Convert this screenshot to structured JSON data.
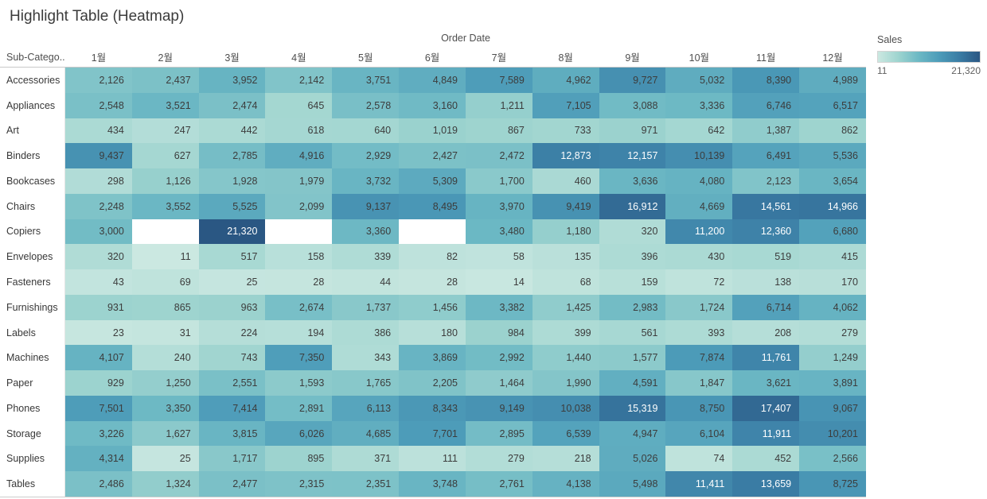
{
  "title": "Highlight Table (Heatmap)",
  "columns_header": {
    "dimension": "Order Date",
    "row_dimension": "Sub-Catego..",
    "months": [
      "1월",
      "2월",
      "3월",
      "4월",
      "5월",
      "6월",
      "7월",
      "8월",
      "9월",
      "10월",
      "11월",
      "12월"
    ]
  },
  "legend": {
    "title": "Sales",
    "min_label": "11",
    "max_label": "21,320"
  },
  "colors": {
    "scale_stops": [
      "#cbe8e1",
      "#9ed4cf",
      "#6cb8c4",
      "#4d9cb9",
      "#3a7ca4",
      "#2a5783"
    ],
    "null_cell": "#ffffff",
    "cell_text_dark": "#3c3c3c",
    "cell_text_light": "#ffffff"
  },
  "chart_data": {
    "type": "heatmap",
    "title": "Highlight Table (Heatmap)",
    "x_label": "Order Date",
    "y_label": "Sub-Catego..",
    "x": [
      "1월",
      "2월",
      "3월",
      "4월",
      "5월",
      "6월",
      "7월",
      "8월",
      "9월",
      "10월",
      "11월",
      "12월"
    ],
    "categories": [
      "Accessories",
      "Appliances",
      "Art",
      "Binders",
      "Bookcases",
      "Chairs",
      "Copiers",
      "Envelopes",
      "Fasteners",
      "Furnishings",
      "Labels",
      "Machines",
      "Paper",
      "Phones",
      "Storage",
      "Supplies",
      "Tables"
    ],
    "legend_title": "Sales",
    "value_range": [
      11,
      21320
    ],
    "rows": [
      {
        "label": "Accessories",
        "values": [
          2126,
          2437,
          3952,
          2142,
          3751,
          4849,
          7589,
          4962,
          9727,
          5032,
          8390,
          4989
        ]
      },
      {
        "label": "Appliances",
        "values": [
          2548,
          3521,
          2474,
          645,
          2578,
          3160,
          1211,
          7105,
          3088,
          3336,
          6746,
          6517
        ]
      },
      {
        "label": "Art",
        "values": [
          434,
          247,
          442,
          618,
          640,
          1019,
          867,
          733,
          971,
          642,
          1387,
          862
        ]
      },
      {
        "label": "Binders",
        "values": [
          9437,
          627,
          2785,
          4916,
          2929,
          2427,
          2472,
          12873,
          12157,
          10139,
          6491,
          5536
        ]
      },
      {
        "label": "Bookcases",
        "values": [
          298,
          1126,
          1928,
          1979,
          3732,
          5309,
          1700,
          460,
          3636,
          4080,
          2123,
          3654
        ]
      },
      {
        "label": "Chairs",
        "values": [
          2248,
          3552,
          5525,
          2099,
          9137,
          8495,
          3970,
          9419,
          16912,
          4669,
          14561,
          14966
        ]
      },
      {
        "label": "Copiers",
        "values": [
          3000,
          null,
          21320,
          null,
          3360,
          null,
          3480,
          1180,
          320,
          11200,
          12360,
          6680
        ]
      },
      {
        "label": "Envelopes",
        "values": [
          320,
          11,
          517,
          158,
          339,
          82,
          58,
          135,
          396,
          430,
          519,
          415
        ]
      },
      {
        "label": "Fasteners",
        "values": [
          43,
          69,
          25,
          28,
          44,
          28,
          14,
          68,
          159,
          72,
          138,
          170
        ]
      },
      {
        "label": "Furnishings",
        "values": [
          931,
          865,
          963,
          2674,
          1737,
          1456,
          3382,
          1425,
          2983,
          1724,
          6714,
          4062
        ]
      },
      {
        "label": "Labels",
        "values": [
          23,
          31,
          224,
          194,
          386,
          180,
          984,
          399,
          561,
          393,
          208,
          279
        ]
      },
      {
        "label": "Machines",
        "values": [
          4107,
          240,
          743,
          7350,
          343,
          3869,
          2992,
          1440,
          1577,
          7874,
          11761,
          1249
        ]
      },
      {
        "label": "Paper",
        "values": [
          929,
          1250,
          2551,
          1593,
          1765,
          2205,
          1464,
          1990,
          4591,
          1847,
          3621,
          3891
        ]
      },
      {
        "label": "Phones",
        "values": [
          7501,
          3350,
          7414,
          2891,
          6113,
          8343,
          9149,
          10038,
          15319,
          8750,
          17407,
          9067
        ]
      },
      {
        "label": "Storage",
        "values": [
          3226,
          1627,
          3815,
          6026,
          4685,
          7701,
          2895,
          6539,
          4947,
          6104,
          11911,
          10201
        ]
      },
      {
        "label": "Supplies",
        "values": [
          4314,
          25,
          1717,
          895,
          371,
          111,
          279,
          218,
          5026,
          74,
          452,
          2566
        ]
      },
      {
        "label": "Tables",
        "values": [
          2486,
          1324,
          2477,
          2315,
          2351,
          3748,
          2761,
          4138,
          5498,
          11411,
          13659,
          8725
        ]
      }
    ]
  }
}
